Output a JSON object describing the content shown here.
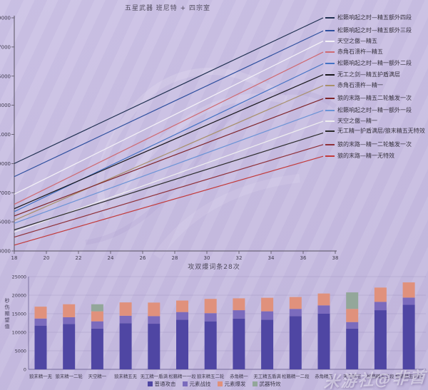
{
  "watermark": {
    "text": "米游社@非酋"
  },
  "colors": {
    "background": "#c9bfe2",
    "axis": "#55505e",
    "normal_attack": "#4f46a3",
    "elemental_skill": "#7b6bbd",
    "elemental_burst": "#e0917c",
    "weapon_passive": "#93a79a"
  },
  "chart_data": [
    {
      "type": "line",
      "title": "五星武器 班尼特 + 四宗室",
      "xlabel": "",
      "ylabel": "",
      "x": [
        18,
        20,
        22,
        24,
        26,
        28,
        30,
        32,
        34,
        36,
        38
      ],
      "xlim": [
        18,
        38
      ],
      "ylim": [
        13000,
        29000
      ],
      "ytick_step": 2000,
      "grid": false,
      "legend_position": "right",
      "series": [
        {
          "name": "松籁响起之时—精五额外四段",
          "color": "#1f3050",
          "y_start": 19000,
          "y_end": 29000
        },
        {
          "name": "松籁响起之时—精五额外三段",
          "color": "#2e4f9e",
          "y_start": 18100,
          "y_end": 28100
        },
        {
          "name": "天空之傲—精五",
          "color": "#f5f3f7",
          "y_start": 16900,
          "y_end": 27400
        },
        {
          "name": "赤角石溃杵—精五",
          "color": "#cf6a72",
          "y_start": 16200,
          "y_end": 26650
        },
        {
          "name": "松籁响起之时—精一额外二段",
          "color": "#4472c4",
          "y_start": 15700,
          "y_end": 25850
        },
        {
          "name": "无工之剑—精五护盾满层",
          "color": "#17161a",
          "y_start": 15900,
          "y_end": 25100
        },
        {
          "name": "赤角石溃杵—精一",
          "color": "#a8906a",
          "y_start": 15100,
          "y_end": 24350
        },
        {
          "name": "狼的末路—精五二轮触发一次",
          "color": "#7e2429",
          "y_start": 15400,
          "y_end": 23450
        },
        {
          "name": "松籁响起之时—精一额外一段",
          "color": "#6b93d6",
          "y_start": 14900,
          "y_end": 22650
        },
        {
          "name": "天空之傲—精一",
          "color": "#efefef",
          "y_start": 14300,
          "y_end": 21900
        },
        {
          "name": "无工精一护盾满层/狼末精五无特效",
          "color": "#2b2b2b",
          "y_start": 14450,
          "y_end": 21100
        },
        {
          "name": "狼的末路—精一二轮触发一次",
          "color": "#8e3038",
          "y_start": 13950,
          "y_end": 20300
        },
        {
          "name": "狼的末路—精一无特效",
          "color": "#c23a3a",
          "y_start": 13400,
          "y_end": 19500
        }
      ]
    },
    {
      "type": "stacked-bar",
      "title": "攻双爆词条28次",
      "xlabel": "",
      "ylabel": "秒伤期望值",
      "ylim": [
        0,
        25000
      ],
      "ytick_step": 5000,
      "grid": true,
      "legend_position": "bottom",
      "categories": [
        "狼末精一无",
        "狼末精一二轮",
        "天空精一",
        "狼末精五无",
        "无工精一盾满",
        "松籁精一一段",
        "狼末精五二轮",
        "赤角精一",
        "无工精五盾满",
        "松籁精一二段",
        "赤角精五",
        "天空精五",
        "松籁精五三段",
        "松籁精五四段"
      ],
      "series": [
        {
          "name": "普通攻击",
          "color": "#4f46a3",
          "values": [
            11800,
            12250,
            11000,
            12450,
            12300,
            13400,
            12950,
            13700,
            13400,
            14350,
            15000,
            11000,
            15950,
            17400
          ]
        },
        {
          "name": "元素战技",
          "color": "#7b6bbd",
          "values": [
            1900,
            1800,
            1950,
            2000,
            2050,
            2050,
            2200,
            2250,
            2250,
            1950,
            2250,
            1750,
            2250,
            1950
          ]
        },
        {
          "name": "元素爆发",
          "color": "#e0917c",
          "values": [
            3200,
            3500,
            2700,
            3600,
            3650,
            3100,
            3850,
            3200,
            3650,
            3200,
            3200,
            3550,
            3850,
            4100
          ]
        },
        {
          "name": "武器特效",
          "color": "#93a79a",
          "values": [
            0,
            0,
            1900,
            0,
            0,
            0,
            0,
            0,
            0,
            0,
            0,
            4450,
            0,
            0
          ]
        }
      ]
    }
  ]
}
